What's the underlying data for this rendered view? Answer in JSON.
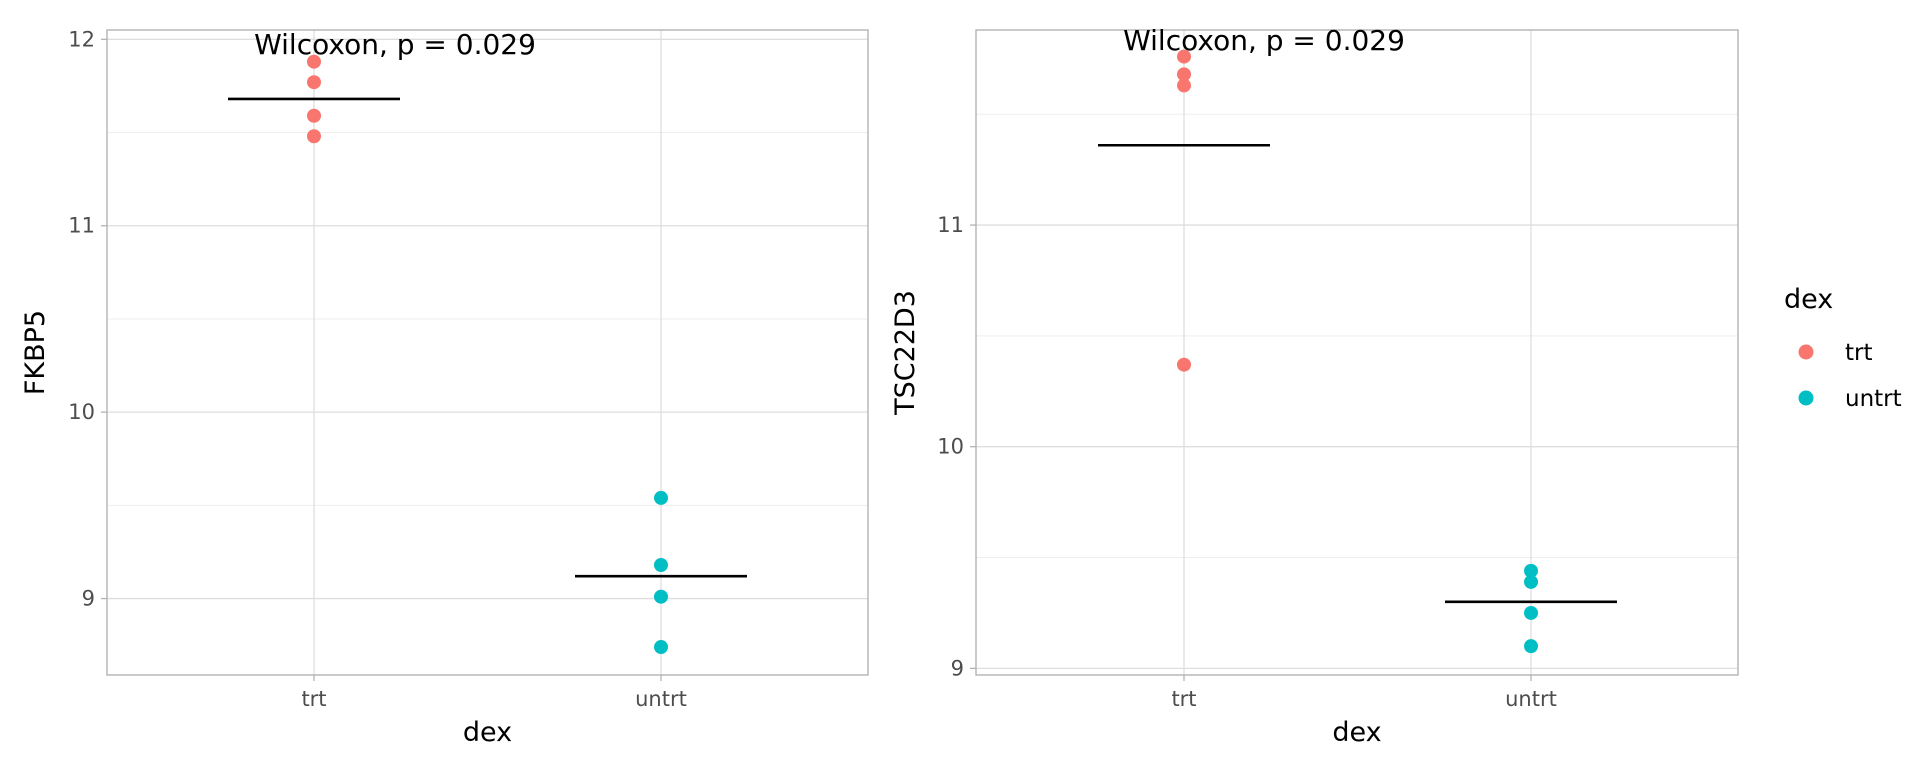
{
  "colors": {
    "trt": "#F8766D",
    "untrt": "#00BFC4"
  },
  "legend": {
    "title": "dex",
    "items": [
      {
        "label": "trt",
        "color": "#F8766D"
      },
      {
        "label": "untrt",
        "color": "#00BFC4"
      }
    ]
  },
  "chart_data": [
    {
      "type": "scatter",
      "xlabel": "dex",
      "ylabel": "FKBP5",
      "categories": [
        "trt",
        "untrt"
      ],
      "ylim": [
        8.59,
        12.05
      ],
      "yticks": [
        9,
        10,
        11,
        12
      ],
      "yticklabels": [
        "9",
        "10",
        "11",
        "12"
      ],
      "minor_yticks": [
        9.5,
        10.5,
        11.5
      ],
      "annotation": "Wilcoxon, p = 0.029",
      "annotation_y": 11.92,
      "series": [
        {
          "name": "trt",
          "category": "trt",
          "color": "#F8766D",
          "values": [
            11.88,
            11.77,
            11.59,
            11.48
          ],
          "mean": 11.68
        },
        {
          "name": "untrt",
          "category": "untrt",
          "color": "#00BFC4",
          "values": [
            9.54,
            9.18,
            9.01,
            8.74
          ],
          "mean": 9.12
        }
      ]
    },
    {
      "type": "scatter",
      "xlabel": "dex",
      "ylabel": "TSC22D3",
      "categories": [
        "trt",
        "untrt"
      ],
      "ylim": [
        8.97,
        11.88
      ],
      "yticks": [
        9,
        10,
        11
      ],
      "yticklabels": [
        "9",
        "10",
        "11"
      ],
      "minor_yticks": [
        9.5,
        10.5,
        11.5
      ],
      "annotation": "Wilcoxon, p = 0.029",
      "annotation_y": 11.79,
      "series": [
        {
          "name": "trt",
          "category": "trt",
          "color": "#F8766D",
          "values": [
            11.76,
            11.68,
            11.63,
            10.37
          ],
          "mean": 11.36
        },
        {
          "name": "untrt",
          "category": "untrt",
          "color": "#00BFC4",
          "values": [
            9.44,
            9.39,
            9.25,
            9.1
          ],
          "mean": 9.3
        }
      ]
    }
  ]
}
